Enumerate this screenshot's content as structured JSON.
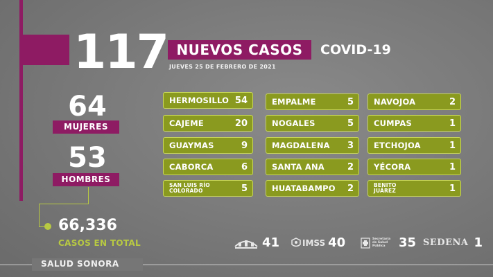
{
  "headline": {
    "total_new": "117",
    "title": "NUEVOS CASOS",
    "title_side": "COVID-19",
    "date": "JUEVES 25 DE FEBRERO DE 2021"
  },
  "gender": {
    "women_count": "64",
    "women_label": "MUJERES",
    "men_count": "53",
    "men_label": "HOMBRES"
  },
  "totals": {
    "total_count": "66,336",
    "total_label": "CASOS EN TOTAL"
  },
  "municipalities": [
    {
      "name": "HERMOSILLO",
      "count": "54"
    },
    {
      "name": "CAJEME",
      "count": "20"
    },
    {
      "name": "GUAYMAS",
      "count": "9"
    },
    {
      "name": "CABORCA",
      "count": "6"
    },
    {
      "name": "SAN LUIS RÍO COLORADO",
      "count": "5"
    },
    {
      "name": "EMPALME",
      "count": "5"
    },
    {
      "name": "NOGALES",
      "count": "5"
    },
    {
      "name": "MAGDALENA",
      "count": "3"
    },
    {
      "name": "SANTA ANA",
      "count": "2"
    },
    {
      "name": "HUATABAMPO",
      "count": "2"
    },
    {
      "name": "NAVOJOA",
      "count": "2"
    },
    {
      "name": "CUMPAS",
      "count": "1"
    },
    {
      "name": "ETCHOJOA",
      "count": "1"
    },
    {
      "name": "YÉCORA",
      "count": "1"
    },
    {
      "name": "BENITO JUÁREZ",
      "count": "1"
    }
  ],
  "institutions": [
    {
      "name": "ISSSTESON",
      "count": "41",
      "icon": "issteson-logo"
    },
    {
      "name": "IMSS",
      "count": "40",
      "icon": "imss-logo"
    },
    {
      "name": "Secretaría de Salud Pública",
      "count": "35",
      "icon": "salud-publica-logo"
    },
    {
      "name": "SEDENA",
      "count": "1",
      "icon": "sedena-logo"
    }
  ],
  "footer": {
    "label": "SALUD SONORA"
  },
  "colors": {
    "accent": "#8e1b63",
    "pill": "#8a9a1f",
    "pill_border": "#c8d65a",
    "lime_text": "#b8c942",
    "background": "#7b7b7b"
  }
}
